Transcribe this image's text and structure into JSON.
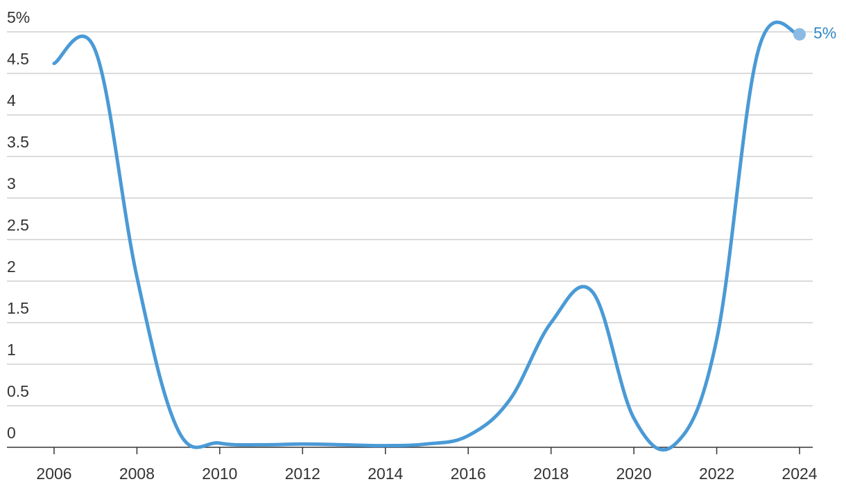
{
  "chart_data": {
    "type": "line",
    "x": [
      2006,
      2007,
      2008,
      2009,
      2010,
      2011,
      2012,
      2013,
      2014,
      2015,
      2016,
      2017,
      2018,
      2019,
      2020,
      2021,
      2022,
      2023,
      2024
    ],
    "values": [
      4.62,
      4.77,
      2.05,
      0.2,
      0.05,
      0.03,
      0.04,
      0.03,
      0.02,
      0.04,
      0.14,
      0.57,
      1.5,
      1.87,
      0.35,
      0.04,
      1.3,
      4.77,
      4.97
    ],
    "value_labels": [
      null,
      null,
      null,
      null,
      null,
      null,
      null,
      null,
      null,
      null,
      null,
      null,
      null,
      null,
      null,
      null,
      null,
      null,
      "5%"
    ],
    "color": "#4a9ad6",
    "xlim": [
      2006,
      2024
    ],
    "xticks": [
      2006,
      2008,
      2010,
      2012,
      2014,
      2016,
      2018,
      2020,
      2022,
      2024
    ],
    "ylim": [
      0,
      5
    ],
    "yticks": [
      0,
      0.5,
      1,
      1.5,
      2,
      2.5,
      3,
      3.5,
      4,
      4.5,
      {
        "value": 5,
        "label": "5%"
      }
    ],
    "grid": true
  }
}
